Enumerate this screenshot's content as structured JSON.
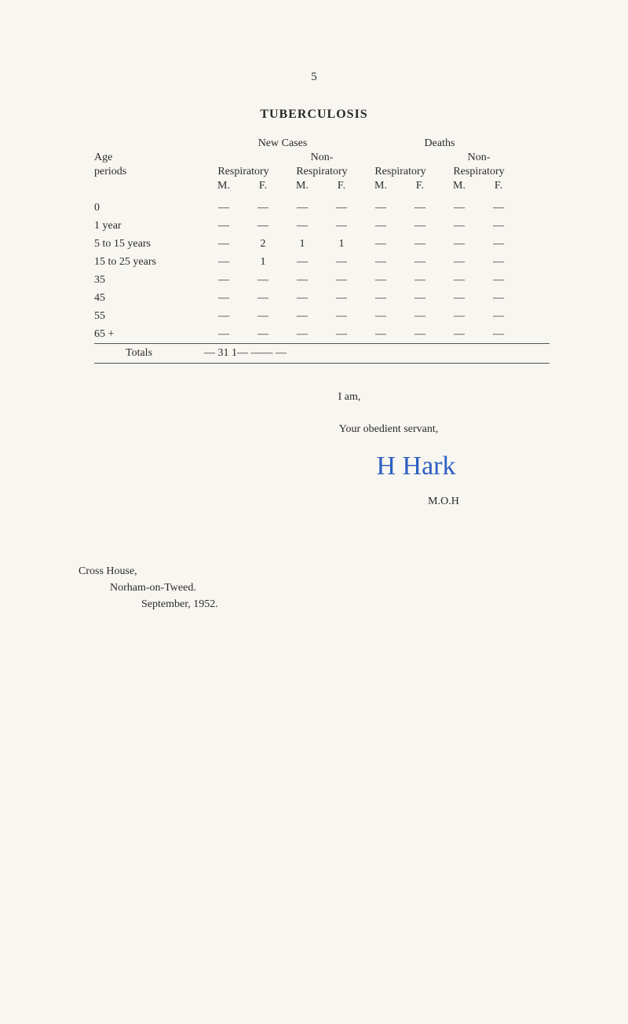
{
  "page_number": "5",
  "title": "TUBERCULOSIS",
  "table": {
    "super_headers": {
      "new_cases": "New Cases",
      "deaths": "Deaths"
    },
    "group_row": {
      "age_label_1": "Age",
      "age_label_2": "periods",
      "col1": "Respiratory",
      "col2_1": "Non-",
      "col2_2": "Respiratory",
      "col3": "Respiratory",
      "col4_1": "Non-",
      "col4_2": "Respiratory"
    },
    "mf_labels": {
      "m": "M.",
      "f": "F."
    },
    "rows": [
      {
        "age": "0",
        "r1m": "—",
        "r1f": "—",
        "nr1m": "—",
        "nr1f": "—",
        "r2m": "—",
        "r2f": "—",
        "nr2m": "—",
        "nr2f": "—"
      },
      {
        "age": "1 year",
        "r1m": "—",
        "r1f": "—",
        "nr1m": "—",
        "nr1f": "—",
        "r2m": "—",
        "r2f": "—",
        "nr2m": "—",
        "nr2f": "—"
      },
      {
        "age": "5 to 15 years",
        "r1m": "—",
        "r1f": "2",
        "nr1m": "1",
        "nr1f": "1",
        "r2m": "—",
        "r2f": "—",
        "nr2m": "—",
        "nr2f": "—"
      },
      {
        "age": "15 to 25 years",
        "r1m": "—",
        "r1f": "1",
        "nr1m": "—",
        "nr1f": "—",
        "r2m": "—",
        "r2f": "—",
        "nr2m": "—",
        "nr2f": "—"
      },
      {
        "age": "35",
        "r1m": "—",
        "r1f": "—",
        "nr1m": "—",
        "nr1f": "—",
        "r2m": "—",
        "r2f": "—",
        "nr2m": "—",
        "nr2f": "—"
      },
      {
        "age": "45",
        "r1m": "—",
        "r1f": "—",
        "nr1m": "—",
        "nr1f": "—",
        "r2m": "—",
        "r2f": "—",
        "nr2m": "—",
        "nr2f": "—"
      },
      {
        "age": "55",
        "r1m": "—",
        "r1f": "—",
        "nr1m": "—",
        "nr1f": "—",
        "r2m": "—",
        "r2f": "—",
        "nr2m": "—",
        "nr2f": "—"
      },
      {
        "age": "65 +",
        "r1m": "—",
        "r1f": "—",
        "nr1m": "—",
        "nr1f": "—",
        "r2m": "—",
        "r2f": "—",
        "nr2m": "—",
        "nr2f": "—"
      }
    ],
    "totals": {
      "label": "Totals",
      "r1m": "—",
      "r1f": "3",
      "nr1m": "1",
      "nr1f": "1",
      "r2m": "—",
      "r2f": "—",
      "nr2m": "—",
      "nr2f": "—"
    }
  },
  "closing": {
    "i_am": "I am,",
    "obedient": "Your obedient servant,",
    "signature": "H Hark",
    "moh": "M.O.H"
  },
  "address": {
    "line1": "Cross House,",
    "line2": "Norham-on-Tweed.",
    "line3": "September, 1952."
  }
}
